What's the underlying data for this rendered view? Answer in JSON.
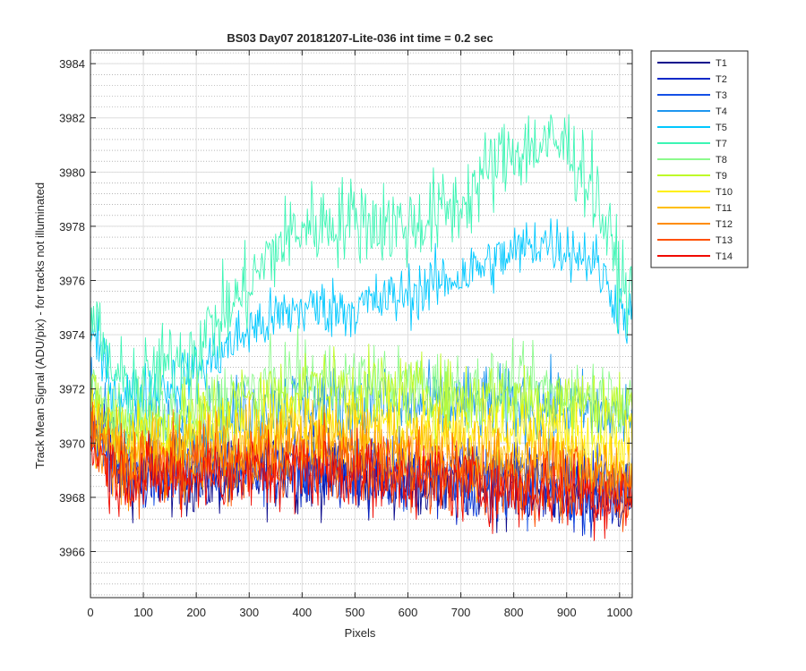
{
  "chart_data": {
    "type": "line",
    "title": "BS03 Day07 20181207-Lite-036 int time = 0.2 sec",
    "xlabel": "Pixels",
    "ylabel": "Track Mean Signal (ADU/pix) - for tracks not illuminated",
    "xlim": [
      0,
      1024
    ],
    "ylim": [
      3964.3,
      3984.5
    ],
    "x_ticks": [
      0,
      100,
      200,
      300,
      400,
      500,
      600,
      700,
      800,
      900,
      1000
    ],
    "y_ticks": [
      3966,
      3968,
      3970,
      3972,
      3974,
      3976,
      3978,
      3980,
      3982,
      3984
    ],
    "grid": true,
    "minor_grid_y": true,
    "legend_position": "outside-right",
    "series": [
      {
        "name": "T1",
        "color": "#0a0a8c",
        "x": [
          0,
          50,
          100,
          200,
          300,
          400,
          500,
          600,
          700,
          800,
          900,
          1000,
          1024
        ],
        "values": [
          3970.8,
          3969.0,
          3968.8,
          3968.7,
          3968.8,
          3968.9,
          3968.8,
          3968.6,
          3968.5,
          3968.4,
          3968.3,
          3968.0,
          3968.2
        ]
      },
      {
        "name": "T2",
        "color": "#0a28c8",
        "x": [
          0,
          50,
          100,
          200,
          300,
          400,
          500,
          600,
          700,
          800,
          900,
          1000,
          1024
        ],
        "values": [
          3970.9,
          3969.1,
          3968.9,
          3968.8,
          3968.9,
          3969.0,
          3968.9,
          3968.7,
          3968.6,
          3968.5,
          3968.4,
          3968.1,
          3968.3
        ]
      },
      {
        "name": "T3",
        "color": "#1450e6",
        "x": [
          0,
          50,
          100,
          200,
          300,
          400,
          500,
          600,
          700,
          800,
          900,
          1000,
          1024
        ],
        "values": [
          3971.0,
          3969.2,
          3969.0,
          3968.9,
          3969.0,
          3969.1,
          3969.0,
          3968.8,
          3968.7,
          3968.6,
          3968.5,
          3968.2,
          3968.4
        ]
      },
      {
        "name": "T4",
        "color": "#1e96f0",
        "x": [
          0,
          50,
          100,
          200,
          300,
          400,
          500,
          600,
          700,
          800,
          900,
          1000,
          1024
        ],
        "values": [
          3971.8,
          3970.5,
          3970.3,
          3970.6,
          3971.2,
          3971.5,
          3971.4,
          3971.3,
          3971.5,
          3971.4,
          3971.3,
          3971.0,
          3971.2
        ]
      },
      {
        "name": "T5",
        "color": "#00c8ff",
        "x": [
          0,
          50,
          100,
          200,
          300,
          400,
          500,
          600,
          700,
          800,
          850,
          900,
          950,
          1000,
          1024
        ],
        "values": [
          3974.0,
          3971.8,
          3971.8,
          3972.6,
          3974.2,
          3975.0,
          3975.0,
          3975.5,
          3976.2,
          3977.0,
          3977.5,
          3977.2,
          3976.8,
          3975.0,
          3974.4
        ]
      },
      {
        "name": "T7",
        "color": "#3cf5b4",
        "x": [
          0,
          50,
          100,
          200,
          300,
          350,
          400,
          500,
          600,
          700,
          750,
          800,
          850,
          900,
          950,
          1000,
          1024
        ],
        "values": [
          3974.8,
          3972.2,
          3972.2,
          3973.6,
          3975.8,
          3977.2,
          3978.0,
          3978.3,
          3978.0,
          3978.8,
          3980.0,
          3980.8,
          3981.0,
          3981.0,
          3979.5,
          3976.2,
          3975.2
        ]
      },
      {
        "name": "T8",
        "color": "#8cfa8c",
        "x": [
          0,
          50,
          100,
          200,
          300,
          400,
          500,
          600,
          700,
          800,
          900,
          1000,
          1024
        ],
        "values": [
          3971.8,
          3971.0,
          3970.9,
          3971.2,
          3971.9,
          3972.3,
          3972.3,
          3972.1,
          3972.0,
          3972.0,
          3971.9,
          3971.6,
          3971.8
        ]
      },
      {
        "name": "T9",
        "color": "#befa28",
        "x": [
          0,
          50,
          100,
          200,
          300,
          400,
          500,
          600,
          700,
          800,
          900,
          1000,
          1024
        ],
        "values": [
          3971.6,
          3970.7,
          3970.6,
          3970.9,
          3971.6,
          3972.0,
          3972.0,
          3971.8,
          3971.7,
          3971.7,
          3971.6,
          3971.3,
          3971.5
        ]
      },
      {
        "name": "T10",
        "color": "#fff000",
        "x": [
          0,
          50,
          100,
          200,
          300,
          400,
          500,
          600,
          700,
          800,
          900,
          1000,
          1024
        ],
        "values": [
          3971.2,
          3970.1,
          3970.0,
          3970.2,
          3970.6,
          3970.8,
          3970.8,
          3970.6,
          3970.4,
          3970.3,
          3970.2,
          3969.9,
          3970.1
        ]
      },
      {
        "name": "T11",
        "color": "#ffbe00",
        "x": [
          0,
          50,
          100,
          200,
          300,
          400,
          500,
          600,
          700,
          800,
          900,
          1000,
          1024
        ],
        "values": [
          3970.9,
          3969.7,
          3969.6,
          3969.8,
          3970.1,
          3970.3,
          3970.2,
          3970.0,
          3969.8,
          3969.6,
          3969.4,
          3969.1,
          3969.3
        ]
      },
      {
        "name": "T12",
        "color": "#ff8c00",
        "x": [
          0,
          50,
          100,
          200,
          300,
          400,
          500,
          600,
          700,
          800,
          900,
          1000,
          1024
        ],
        "values": [
          3970.6,
          3969.4,
          3969.3,
          3969.4,
          3969.6,
          3969.7,
          3969.6,
          3969.4,
          3969.2,
          3969.0,
          3968.9,
          3968.6,
          3968.8
        ]
      },
      {
        "name": "T13",
        "color": "#ff5000",
        "x": [
          0,
          50,
          100,
          200,
          300,
          400,
          500,
          600,
          700,
          800,
          900,
          1000,
          1024
        ],
        "values": [
          3970.3,
          3969.1,
          3969.0,
          3969.1,
          3969.2,
          3969.3,
          3969.2,
          3969.0,
          3968.8,
          3968.6,
          3968.5,
          3968.2,
          3968.4
        ]
      },
      {
        "name": "T14",
        "color": "#f00a00",
        "x": [
          0,
          50,
          100,
          200,
          300,
          400,
          500,
          600,
          700,
          800,
          900,
          1000,
          1024
        ],
        "values": [
          3970.0,
          3968.8,
          3968.7,
          3968.8,
          3968.9,
          3969.0,
          3968.9,
          3968.7,
          3968.5,
          3968.3,
          3968.2,
          3967.9,
          3968.1
        ]
      }
    ]
  }
}
